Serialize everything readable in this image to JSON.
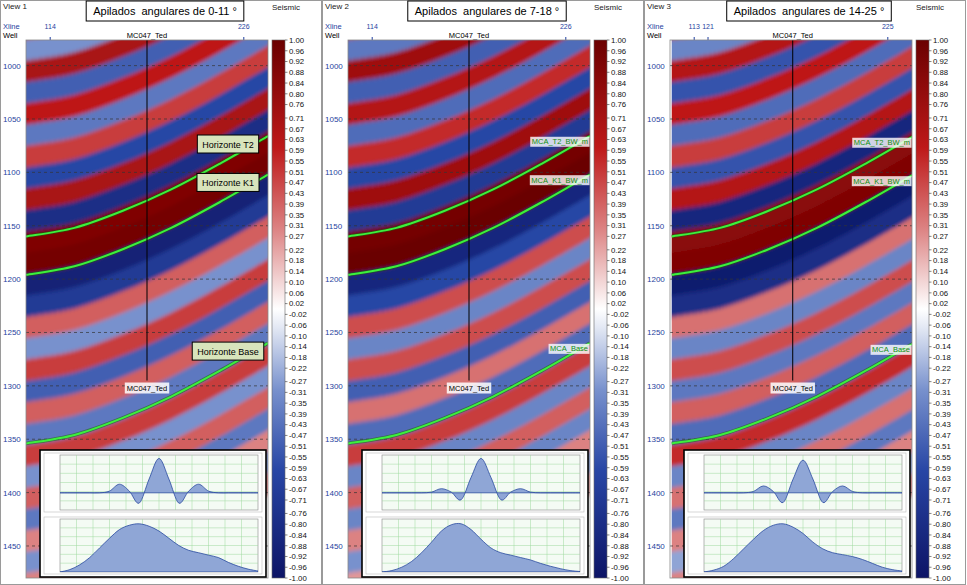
{
  "colorbar": {
    "title": "Seismic",
    "lim": [
      -1,
      1
    ],
    "ticks": [
      {
        "value": 1,
        "label": "1.00"
      },
      0.96,
      0.92,
      0.88,
      0.84,
      {
        "value": 0.8,
        "label": "0.80"
      },
      0.76,
      0.71,
      0.67,
      0.63,
      0.59,
      0.55,
      0.51,
      0.47,
      0.43,
      0.39,
      0.35,
      0.31,
      0.27,
      0.22,
      0.18,
      0.14,
      {
        "value": 0.1,
        "label": "0.10"
      },
      0.06,
      0.02,
      -0.02,
      -0.06,
      {
        "value": -0.1,
        "label": "-0.10"
      },
      -0.14,
      -0.18,
      -0.22,
      -0.27,
      -0.31,
      -0.35,
      -0.39,
      -0.43,
      -0.47,
      -0.51,
      -0.55,
      -0.59,
      -0.63,
      -0.67,
      -0.71,
      -0.76,
      {
        "value": -0.8,
        "label": "-0.80"
      },
      -0.84,
      -0.88,
      -0.92,
      -0.96,
      {
        "value": -1,
        "label": "-1.00"
      }
    ]
  },
  "reflectors": {
    "x": [
      100,
      128,
      156,
      184,
      212,
      240
    ],
    "times": [
      [
        966,
        958,
        942,
        922,
        898,
        872
      ],
      [
        986,
        978,
        962,
        942,
        918,
        892
      ],
      [
        1006,
        998,
        982,
        962,
        938,
        912
      ],
      [
        1026,
        1018,
        1002,
        982,
        958,
        932
      ],
      [
        1046,
        1038,
        1022,
        1002,
        978,
        952
      ],
      [
        1066,
        1058,
        1042,
        1022,
        998,
        972
      ],
      [
        1086,
        1078,
        1062,
        1042,
        1018,
        992
      ],
      [
        1106,
        1098,
        1082,
        1062,
        1038,
        1012
      ],
      [
        1126,
        1118,
        1102,
        1082,
        1058,
        1032
      ],
      [
        1146,
        1138,
        1122,
        1102,
        1078,
        1052
      ],
      [
        1166,
        1158,
        1142,
        1122,
        1098,
        1072
      ],
      [
        1186,
        1178,
        1162,
        1142,
        1118,
        1092
      ],
      [
        1206,
        1198,
        1182,
        1162,
        1138,
        1112
      ],
      [
        1226,
        1218,
        1202,
        1182,
        1158,
        1132
      ],
      [
        1246,
        1238,
        1222,
        1202,
        1178,
        1152
      ],
      [
        1266,
        1258,
        1242,
        1222,
        1198,
        1172
      ],
      [
        1286,
        1278,
        1262,
        1242,
        1218,
        1192
      ],
      [
        1306,
        1298,
        1282,
        1262,
        1238,
        1212
      ],
      [
        1326,
        1318,
        1302,
        1282,
        1258,
        1232
      ],
      [
        1346,
        1338,
        1322,
        1302,
        1278,
        1252
      ],
      [
        1366,
        1358,
        1342,
        1322,
        1298,
        1272
      ],
      [
        1386,
        1378,
        1362,
        1342,
        1318,
        1292
      ],
      [
        1406,
        1398,
        1382,
        1362,
        1338,
        1312
      ],
      [
        1426,
        1418,
        1402,
        1382,
        1358,
        1332
      ],
      [
        1446,
        1438,
        1422,
        1402,
        1378,
        1352
      ],
      [
        1466,
        1458,
        1442,
        1422,
        1398,
        1372
      ],
      [
        1486,
        1478,
        1462,
        1442,
        1418,
        1392
      ]
    ]
  },
  "chart_data": [
    {
      "type": "seismic_section",
      "view": "View 1",
      "title": "Apilados  angulares de 0-11 °",
      "x_label": "Xline",
      "well_label": "Well",
      "xlim": [
        100,
        240
      ],
      "xticks": [
        114,
        226
      ],
      "ylim": [
        976,
        1480
      ],
      "yticks": [
        1000,
        1050,
        1100,
        1150,
        1200,
        1250,
        1300,
        1350,
        1400,
        1450
      ],
      "grid": true,
      "well": {
        "name": "MC047_Ted",
        "xline": 170,
        "end": 1295
      },
      "horizons": [
        {
          "label": "Horizonte T2",
          "color": "#3cf03c",
          "x": [
            100,
            128,
            156,
            184,
            212,
            240
          ],
          "values": [
            1160,
            1152,
            1136,
            1116,
            1092,
            1066
          ]
        },
        {
          "label": "Horizonte K1",
          "color": "#3cf03c",
          "x": [
            100,
            128,
            156,
            184,
            212,
            240
          ],
          "values": [
            1196,
            1188,
            1172,
            1152,
            1128,
            1102
          ]
        },
        {
          "label": "Horizonte Base",
          "color": "#3cf03c",
          "x": [
            100,
            128,
            156,
            184,
            212,
            240
          ],
          "values": [
            1354,
            1346,
            1330,
            1310,
            1286,
            1260
          ]
        }
      ],
      "reflector_amplitudes": [
        0.5,
        -0.3,
        0.7,
        -0.5,
        0.6,
        -0.4,
        0.5,
        -0.6,
        0.7,
        -0.8,
        0.9,
        0.95,
        -0.9,
        -0.7,
        0.4,
        -0.3,
        0.5,
        -0.5,
        0.4,
        -0.4,
        0.5,
        -0.3,
        0.4,
        -0.4,
        0.3,
        -0.3,
        0.3
      ],
      "wavelet": {
        "lag": [
          -100,
          -90,
          -80,
          -70,
          -60,
          -50,
          -40,
          -30,
          -20,
          -10,
          0,
          10,
          20,
          30,
          40,
          50,
          60,
          70,
          80,
          90,
          100
        ],
        "values": [
          0,
          0,
          0,
          0,
          0,
          0.05,
          0.25,
          0.05,
          -0.3,
          0.4,
          1.0,
          0.4,
          -0.3,
          0.05,
          0.25,
          0.05,
          0,
          0,
          0,
          0,
          0
        ],
        "xlim": [
          -100,
          100
        ],
        "ylim": [
          -0.5,
          1.1
        ]
      },
      "spectrum": {
        "frequency": [
          0,
          5,
          10,
          15,
          20,
          25,
          30,
          35,
          40,
          45,
          50,
          55,
          60,
          65,
          70,
          75,
          80,
          85,
          90,
          95,
          100
        ],
        "values": [
          0,
          0.05,
          0.15,
          0.3,
          0.5,
          0.7,
          0.88,
          0.97,
          1.0,
          0.95,
          0.85,
          0.7,
          0.55,
          0.45,
          0.4,
          0.35,
          0.3,
          0.2,
          0.12,
          0.06,
          0.02
        ],
        "xlim": [
          0,
          100
        ],
        "ylim": [
          0,
          1.1
        ]
      }
    },
    {
      "type": "seismic_section",
      "view": "View 2",
      "title": "Apilados  angulares de 7-18 °",
      "x_label": "Xline",
      "well_label": "Well",
      "xlim": [
        100,
        240
      ],
      "xticks": [
        114,
        226
      ],
      "ylim": [
        976,
        1480
      ],
      "yticks": [
        1000,
        1050,
        1100,
        1150,
        1200,
        1250,
        1300,
        1350,
        1400,
        1450
      ],
      "grid": true,
      "well": {
        "name": "MC047_Ted",
        "xline": 170,
        "end": 1295
      },
      "horizons": [
        {
          "label": "MCA_T2_BW_m",
          "color": "#3cf03c",
          "x": [
            100,
            128,
            156,
            184,
            212,
            240
          ],
          "values": [
            1160,
            1152,
            1136,
            1116,
            1092,
            1066
          ]
        },
        {
          "label": "MCA_K1_BW_m",
          "color": "#3cf03c",
          "x": [
            100,
            128,
            156,
            184,
            212,
            240
          ],
          "values": [
            1196,
            1188,
            1172,
            1152,
            1128,
            1102
          ]
        },
        {
          "label": "MCA_Base",
          "color": "#3cf03c",
          "x": [
            100,
            128,
            156,
            184,
            212,
            240
          ],
          "values": [
            1354,
            1346,
            1330,
            1310,
            1286,
            1260
          ]
        }
      ],
      "reflector_amplitudes": [
        0.6,
        -0.4,
        0.75,
        -0.5,
        0.65,
        -0.45,
        0.55,
        -0.6,
        0.75,
        -0.7,
        0.95,
        1.0,
        -0.85,
        -0.6,
        0.45,
        -0.35,
        0.45,
        -0.5,
        0.35,
        -0.45,
        0.5,
        -0.35,
        0.4,
        -0.35,
        0.3,
        -0.3,
        0.25
      ],
      "wavelet": {
        "lag": [
          -100,
          -90,
          -80,
          -70,
          -60,
          -50,
          -40,
          -30,
          -20,
          -10,
          0,
          10,
          20,
          30,
          40,
          50,
          60,
          70,
          80,
          90,
          100
        ],
        "values": [
          0,
          0,
          0,
          0,
          0,
          0.02,
          0.12,
          0.02,
          -0.2,
          0.45,
          1.0,
          0.45,
          -0.2,
          0.02,
          0.12,
          0.02,
          0,
          0,
          0,
          0,
          0
        ],
        "xlim": [
          -100,
          100
        ],
        "ylim": [
          -0.5,
          1.1
        ]
      },
      "spectrum": {
        "frequency": [
          0,
          5,
          10,
          15,
          20,
          25,
          30,
          35,
          40,
          45,
          50,
          55,
          60,
          65,
          70,
          75,
          80,
          85,
          90,
          95,
          100
        ],
        "values": [
          0,
          0.03,
          0.1,
          0.22,
          0.4,
          0.62,
          0.85,
          0.98,
          1.0,
          0.88,
          0.68,
          0.5,
          0.4,
          0.35,
          0.3,
          0.25,
          0.18,
          0.12,
          0.07,
          0.03,
          0.01
        ],
        "xlim": [
          0,
          100
        ],
        "ylim": [
          0,
          1.1
        ]
      }
    },
    {
      "type": "seismic_section",
      "view": "View 3",
      "title": "Apilados  angulares de 14-25 °",
      "x_label": "Xline",
      "well_label": "Well",
      "xlim": [
        99,
        239
      ],
      "xticks": [
        113,
        121,
        225
      ],
      "ylim": [
        976,
        1480
      ],
      "yticks": [
        1000,
        1050,
        1100,
        1150,
        1200,
        1250,
        1300,
        1350,
        1400,
        1450
      ],
      "grid": true,
      "well": {
        "name": "MC047_Ted",
        "xline": 170,
        "end": 1295
      },
      "horizons": [
        {
          "label": "MCA_T2_BW_m",
          "color": "#3cf03c",
          "x": [
            100,
            128,
            156,
            184,
            212,
            240
          ],
          "values": [
            1160,
            1152,
            1136,
            1116,
            1092,
            1066
          ]
        },
        {
          "label": "MCA_K1_BW_m",
          "color": "#3cf03c",
          "x": [
            100,
            128,
            156,
            184,
            212,
            240
          ],
          "values": [
            1196,
            1188,
            1172,
            1152,
            1128,
            1102
          ]
        },
        {
          "label": "MCA_Base",
          "color": "#3cf03c",
          "x": [
            100,
            128,
            156,
            184,
            212,
            240
          ],
          "values": [
            1354,
            1346,
            1330,
            1310,
            1286,
            1260
          ]
        }
      ],
      "reflector_amplitudes": [
        0.55,
        -0.35,
        0.65,
        -0.55,
        0.6,
        -0.45,
        0.5,
        -0.55,
        0.65,
        -0.85,
        0.85,
        0.9,
        -0.95,
        -0.8,
        0.35,
        -0.35,
        0.45,
        -0.4,
        0.4,
        -0.45,
        0.55,
        -0.35,
        0.35,
        -0.4,
        0.3,
        -0.25,
        0.3
      ],
      "wavelet": {
        "lag": [
          -100,
          -90,
          -80,
          -70,
          -60,
          -50,
          -40,
          -30,
          -20,
          -10,
          0,
          10,
          20,
          30,
          40,
          50,
          60,
          70,
          80,
          90,
          100
        ],
        "values": [
          0,
          0,
          0,
          0,
          0,
          0.04,
          0.2,
          0.04,
          -0.28,
          0.4,
          0.95,
          0.4,
          -0.28,
          0.04,
          0.2,
          0.04,
          0,
          0,
          0,
          0,
          0
        ],
        "xlim": [
          -100,
          100
        ],
        "ylim": [
          -0.5,
          1.1
        ]
      },
      "spectrum": {
        "frequency": [
          0,
          5,
          10,
          15,
          20,
          25,
          30,
          35,
          40,
          45,
          50,
          55,
          60,
          65,
          70,
          75,
          80,
          85,
          90,
          95,
          100
        ],
        "values": [
          0,
          0.04,
          0.12,
          0.28,
          0.48,
          0.68,
          0.86,
          0.97,
          1.0,
          0.93,
          0.8,
          0.62,
          0.48,
          0.4,
          0.36,
          0.32,
          0.26,
          0.18,
          0.1,
          0.05,
          0.02
        ],
        "xlim": [
          0,
          100
        ],
        "ylim": [
          0,
          1.1
        ]
      }
    }
  ]
}
